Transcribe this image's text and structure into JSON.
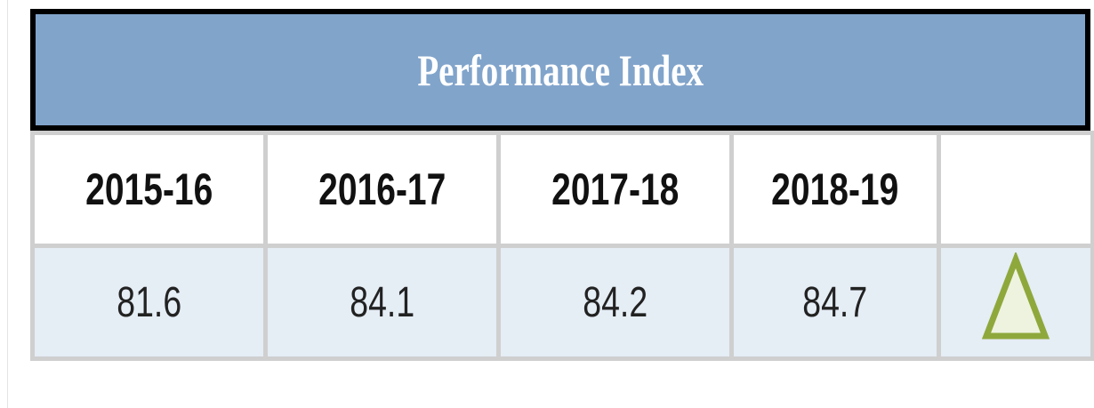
{
  "table": {
    "title": "Performance Index",
    "header": [
      "2015-16",
      "2016-17",
      "2017-18",
      "2018-19"
    ],
    "rows": [
      [
        "81.6",
        "84.1",
        "84.2",
        "84.7"
      ]
    ]
  }
}
